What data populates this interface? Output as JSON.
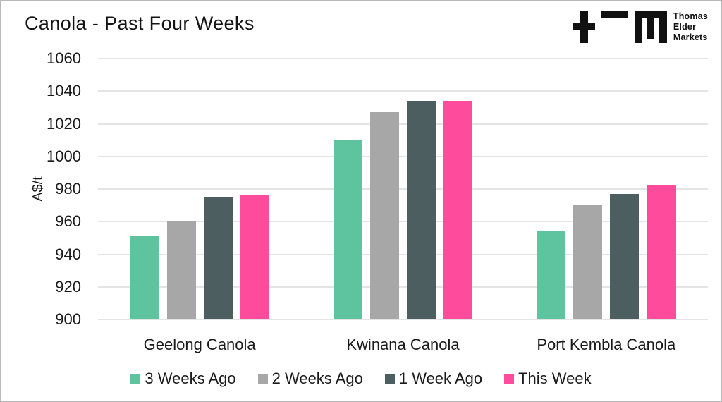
{
  "title": "Canola - Past Four Weeks",
  "logo": {
    "lines": [
      "Thomas",
      "Elder",
      "Markets"
    ]
  },
  "chart_data": {
    "type": "bar",
    "title": "Canola - Past Four Weeks",
    "categories": [
      "Geelong Canola",
      "Kwinana Canola",
      "Port Kembla Canola"
    ],
    "series": [
      {
        "name": "3 Weeks Ago",
        "color": "#5EC39F",
        "values": [
          951,
          1010,
          954
        ]
      },
      {
        "name": "2 Weeks Ago",
        "color": "#A7A7A7",
        "values": [
          960,
          1027,
          970
        ]
      },
      {
        "name": "1 Week Ago",
        "color": "#4C5E60",
        "values": [
          975,
          1034,
          977
        ]
      },
      {
        "name": "This Week",
        "color": "#FF4B9B",
        "values": [
          976,
          1034,
          982
        ]
      }
    ],
    "xlabel": "",
    "ylabel": "A$/t",
    "ylim": [
      900,
      1060
    ],
    "ytick_step": 20,
    "yticks": [
      900,
      920,
      940,
      960,
      980,
      1000,
      1020,
      1040,
      1060
    ],
    "grid": "horizontal",
    "legend_position": "bottom",
    "colors": {
      "background": "#ffffff",
      "gridline": "#e4e4e4",
      "text": "#1a1a1a"
    }
  }
}
